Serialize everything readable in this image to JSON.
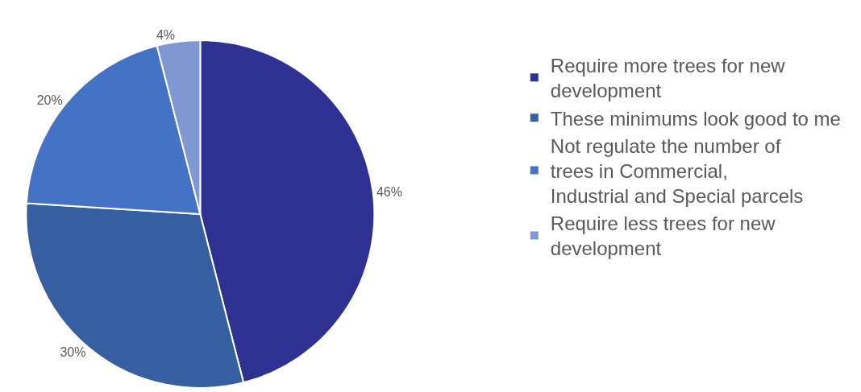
{
  "chart_data": {
    "type": "pie",
    "categories": [
      "Require more trees for new development",
      "These minimums look good to me",
      "Not regulate the number of trees in Commercial, Industrial and Special parcels",
      "Require less trees for new development"
    ],
    "values": [
      46,
      30,
      20,
      4
    ],
    "colors": [
      "#2e3192",
      "#355fa0",
      "#4472c4",
      "#8097d3"
    ],
    "value_labels": [
      "46%",
      "30%",
      "20%",
      "4%"
    ],
    "legend": "right"
  }
}
